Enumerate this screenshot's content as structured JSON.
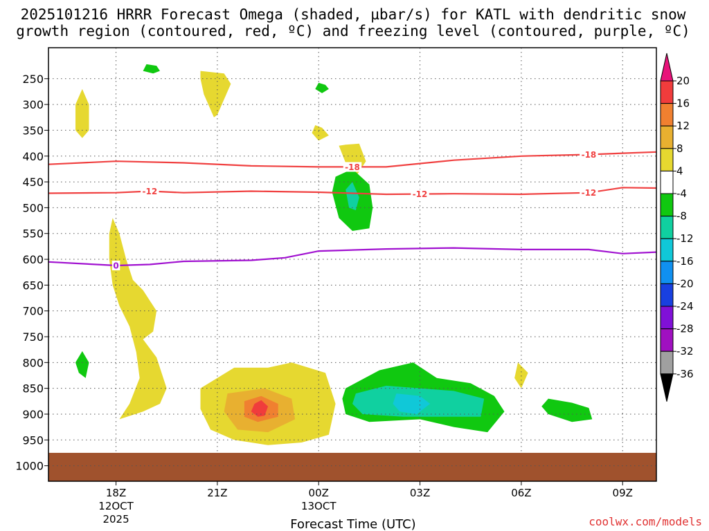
{
  "chart_data": {
    "type": "time-height-cross-section",
    "title_lines": [
      "2025101216 HRRR Forecast Omega (shaded, µbar/s) for KATL with dendritic snow",
      "growth region (contoured, red, ºC) and freezing level (contoured, purple, ºC)"
    ],
    "xlabel": "Forecast Time (UTC)",
    "ylabel": "",
    "x_range_hours": [
      16,
      34
    ],
    "y_range_mb": [
      190,
      1030
    ],
    "x_ticks": [
      {
        "hour": 18,
        "label": "18Z",
        "sublabels": [
          "12OCT",
          "2025"
        ]
      },
      {
        "hour": 21,
        "label": "21Z",
        "sublabels": []
      },
      {
        "hour": 24,
        "label": "00Z",
        "sublabels": [
          "13OCT"
        ]
      },
      {
        "hour": 27,
        "label": "03Z",
        "sublabels": []
      },
      {
        "hour": 30,
        "label": "06Z",
        "sublabels": []
      },
      {
        "hour": 33,
        "label": "09Z",
        "sublabels": []
      }
    ],
    "y_ticks": [
      250,
      300,
      350,
      400,
      450,
      500,
      550,
      600,
      650,
      700,
      750,
      800,
      850,
      900,
      950,
      1000
    ],
    "ground": {
      "pressure_mb": 975,
      "color": "#a0522d"
    },
    "colorbar": {
      "labels": [
        "20",
        "16",
        "12",
        "8",
        "4",
        "-4",
        "-8",
        "-12",
        "-16",
        "-20",
        "-24",
        "-28",
        "-32",
        "-36"
      ],
      "colors": [
        "#e8137a",
        "#f03c3c",
        "#f08030",
        "#e8b030",
        "#e6d830",
        "#ffffff",
        "#10c810",
        "#10d0a0",
        "#10c8d8",
        "#1090f0",
        "#1840e0",
        "#8010d8",
        "#a010c0",
        "#a0a0a0",
        "#000000"
      ]
    },
    "series": [
      {
        "name": "-18",
        "kind": "dendritic-growth isotherm",
        "unit": "ºC",
        "color": "#f04040",
        "points": [
          [
            16,
            416
          ],
          [
            18,
            410
          ],
          [
            20,
            413
          ],
          [
            22,
            419
          ],
          [
            24,
            421
          ],
          [
            26,
            421
          ],
          [
            28,
            408
          ],
          [
            30,
            400
          ],
          [
            32,
            397
          ],
          [
            34,
            392
          ]
        ],
        "label_positions": [
          25,
          32
        ]
      },
      {
        "name": "-12",
        "kind": "dendritic-growth isotherm",
        "unit": "ºC",
        "color": "#f04040",
        "points": [
          [
            16,
            472
          ],
          [
            18,
            471
          ],
          [
            19,
            468
          ],
          [
            20,
            471
          ],
          [
            22,
            468
          ],
          [
            24,
            470
          ],
          [
            26,
            474
          ],
          [
            28,
            473
          ],
          [
            30,
            474
          ],
          [
            32,
            471
          ],
          [
            33,
            461
          ],
          [
            34,
            462
          ]
        ],
        "label_positions": [
          19,
          27,
          32
        ]
      },
      {
        "name": "0",
        "kind": "freezing level",
        "unit": "ºC",
        "color": "#a010d0",
        "points": [
          [
            16,
            605
          ],
          [
            18,
            612
          ],
          [
            19,
            610
          ],
          [
            20,
            604
          ],
          [
            22,
            602
          ],
          [
            23,
            597
          ],
          [
            24,
            584
          ],
          [
            26,
            580
          ],
          [
            28,
            578
          ],
          [
            30,
            581
          ],
          [
            32,
            581
          ],
          [
            33,
            589
          ],
          [
            34,
            586
          ]
        ],
        "label_positions": [
          18
        ]
      }
    ],
    "shaded_regions": [
      {
        "name": "omega 4-8 yellow",
        "value_range": [
          4,
          8
        ],
        "color": "#e6d830",
        "polygons": [
          [
            [
              17.0,
              270
            ],
            [
              17.2,
              300
            ],
            [
              17.2,
              350
            ],
            [
              17.0,
              365
            ],
            [
              16.8,
              350
            ],
            [
              16.8,
              300
            ]
          ],
          [
            [
              20.5,
              235
            ],
            [
              21.2,
              240
            ],
            [
              21.4,
              260
            ],
            [
              21.0,
              320
            ],
            [
              20.9,
              325
            ],
            [
              20.6,
              280
            ],
            [
              20.5,
              250
            ]
          ],
          [
            [
              23.9,
              340
            ],
            [
              24.1,
              345
            ],
            [
              24.3,
              360
            ],
            [
              24.0,
              370
            ],
            [
              23.8,
              355
            ]
          ],
          [
            [
              24.8,
              378
            ],
            [
              25.2,
              376
            ],
            [
              25.4,
              410
            ],
            [
              25.1,
              440
            ],
            [
              24.9,
              430
            ],
            [
              24.6,
              380
            ]
          ],
          [
            [
              17.9,
              520
            ],
            [
              18.1,
              550
            ],
            [
              18.3,
              600
            ],
            [
              18.5,
              640
            ],
            [
              18.8,
              660
            ],
            [
              19.2,
              700
            ],
            [
              19.1,
              740
            ],
            [
              18.8,
              755
            ],
            [
              19.2,
              790
            ],
            [
              19.5,
              850
            ],
            [
              19.3,
              880
            ],
            [
              18.8,
              895
            ],
            [
              18.1,
              910
            ],
            [
              18.4,
              880
            ],
            [
              18.7,
              830
            ],
            [
              18.6,
              780
            ],
            [
              18.4,
              730
            ],
            [
              18.1,
              690
            ],
            [
              17.9,
              650
            ],
            [
              17.8,
              600
            ],
            [
              17.8,
              550
            ]
          ],
          [
            [
              20.5,
              850
            ],
            [
              21.5,
              810
            ],
            [
              22.5,
              810
            ],
            [
              23.2,
              800
            ],
            [
              24.2,
              820
            ],
            [
              24.5,
              880
            ],
            [
              24.3,
              940
            ],
            [
              23.5,
              955
            ],
            [
              22.5,
              960
            ],
            [
              21.5,
              950
            ],
            [
              20.8,
              930
            ],
            [
              20.5,
              890
            ]
          ],
          [
            [
              29.9,
              800
            ],
            [
              30.2,
              820
            ],
            [
              30.0,
              850
            ],
            [
              29.8,
              830
            ]
          ]
        ]
      },
      {
        "name": "omega 8-12 orange",
        "value_range": [
          8,
          12
        ],
        "color": "#e8b030",
        "polygons": [
          [
            [
              21.3,
              860
            ],
            [
              22.4,
              850
            ],
            [
              23.2,
              870
            ],
            [
              23.3,
              910
            ],
            [
              22.5,
              935
            ],
            [
              21.6,
              930
            ],
            [
              21.2,
              895
            ]
          ]
        ]
      },
      {
        "name": "omega 12-16 dark orange",
        "value_range": [
          12,
          16
        ],
        "color": "#f08030",
        "polygons": [
          [
            [
              21.8,
              875
            ],
            [
              22.3,
              865
            ],
            [
              22.8,
              880
            ],
            [
              22.8,
              905
            ],
            [
              22.2,
              915
            ],
            [
              21.8,
              905
            ]
          ]
        ]
      },
      {
        "name": "omega 16-20 red",
        "value_range": [
          16,
          20
        ],
        "color": "#f03c3c",
        "polygons": [
          [
            [
              22.1,
              880
            ],
            [
              22.3,
              873
            ],
            [
              22.5,
              885
            ],
            [
              22.4,
              903
            ],
            [
              22.2,
              905
            ],
            [
              22.0,
              895
            ]
          ]
        ]
      },
      {
        "name": "omega -8 to -4 green",
        "value_range": [
          -8,
          -4
        ],
        "color": "#10c810",
        "polygons": [
          [
            [
              18.9,
              222
            ],
            [
              19.2,
              225
            ],
            [
              19.3,
              235
            ],
            [
              19.1,
              240
            ],
            [
              18.8,
              235
            ]
          ],
          [
            [
              24.0,
              258
            ],
            [
              24.2,
              262
            ],
            [
              24.3,
              270
            ],
            [
              24.1,
              278
            ],
            [
              23.9,
              270
            ]
          ],
          [
            [
              17.0,
              778
            ],
            [
              17.2,
              800
            ],
            [
              17.1,
              830
            ],
            [
              16.9,
              820
            ],
            [
              16.8,
              800
            ]
          ],
          [
            [
              24.5,
              440
            ],
            [
              25.0,
              425
            ],
            [
              25.5,
              455
            ],
            [
              25.6,
              500
            ],
            [
              25.5,
              540
            ],
            [
              25.0,
              545
            ],
            [
              24.6,
              520
            ],
            [
              24.4,
              470
            ]
          ],
          [
            [
              24.8,
              850
            ],
            [
              25.8,
              815
            ],
            [
              26.8,
              800
            ],
            [
              27.5,
              830
            ],
            [
              28.5,
              840
            ],
            [
              29.2,
              865
            ],
            [
              29.5,
              895
            ],
            [
              29.0,
              935
            ],
            [
              28.0,
              925
            ],
            [
              27.0,
              910
            ],
            [
              25.5,
              915
            ],
            [
              24.8,
              900
            ],
            [
              24.7,
              870
            ]
          ],
          [
            [
              30.8,
              870
            ],
            [
              31.5,
              878
            ],
            [
              32.0,
              888
            ],
            [
              32.1,
              910
            ],
            [
              31.5,
              915
            ],
            [
              30.8,
              900
            ],
            [
              30.6,
              885
            ]
          ]
        ]
      },
      {
        "name": "omega -12 to -8 teal",
        "value_range": [
          -12,
          -8
        ],
        "color": "#10d0a0",
        "polygons": [
          [
            [
              24.8,
              465
            ],
            [
              25.0,
              450
            ],
            [
              25.2,
              480
            ],
            [
              25.1,
              505
            ],
            [
              24.9,
              500
            ]
          ],
          [
            [
              25.1,
              860
            ],
            [
              26.0,
              845
            ],
            [
              27.0,
              850
            ],
            [
              28.0,
              855
            ],
            [
              28.9,
              870
            ],
            [
              28.8,
              905
            ],
            [
              27.8,
              905
            ],
            [
              26.5,
              905
            ],
            [
              25.3,
              900
            ],
            [
              25.0,
              880
            ]
          ]
        ]
      },
      {
        "name": "omega -16 to -12 cyan",
        "value_range": [
          -16,
          -12
        ],
        "color": "#10c8d8",
        "polygons": [
          [
            [
              26.3,
              860
            ],
            [
              27.0,
              865
            ],
            [
              27.3,
              880
            ],
            [
              26.9,
              900
            ],
            [
              26.4,
              895
            ],
            [
              26.2,
              880
            ]
          ]
        ]
      }
    ]
  },
  "watermark": "coolwx.com/models",
  "colors": {
    "isotherm": "#f04040",
    "freezing_level": "#a010d0",
    "watermark": "#e03030",
    "ground": "#a0522d"
  }
}
